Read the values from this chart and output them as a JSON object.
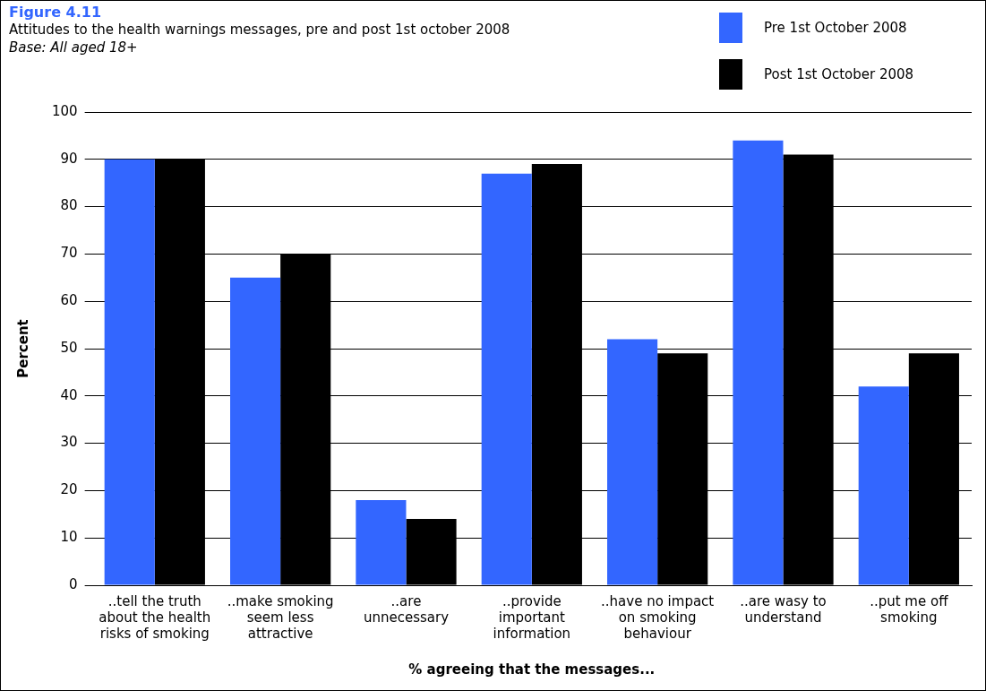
{
  "chart_data": {
    "type": "bar",
    "title": "Figure 4.11",
    "subtitle": "Attitudes to the health warnings messages, pre and post 1st october 2008",
    "annotations": [
      "Base: All aged 18+"
    ],
    "xlabel": "% agreeing that the messages...",
    "ylabel": "Percent",
    "categories": [
      "..tell the truth about the health risks of smoking",
      "..make smoking seem less attractive",
      "..are unnecessary",
      "..provide important information",
      "..have no impact on smoking behaviour",
      "..are wasy to understand",
      "..put me off smoking"
    ],
    "series": [
      {
        "name": "Pre 1st October 2008",
        "color": "#3366ff",
        "values": [
          90,
          65,
          18,
          87,
          52,
          94,
          42
        ]
      },
      {
        "name": "Post 1st October 2008",
        "color": "#000000",
        "values": [
          90,
          70,
          14,
          89,
          49,
          91,
          49
        ]
      }
    ],
    "ylim": [
      0,
      100
    ],
    "yticks": [
      0,
      10,
      20,
      30,
      40,
      50,
      60,
      70,
      80,
      90,
      100
    ],
    "grid": "y",
    "legend": "top right"
  }
}
